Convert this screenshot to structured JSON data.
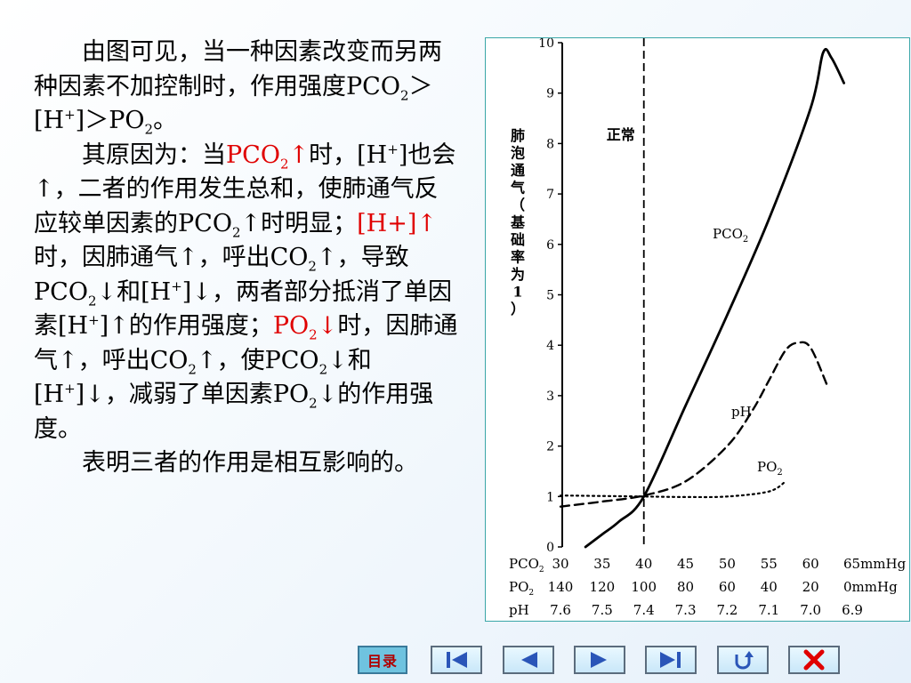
{
  "text": {
    "p1_a": "由图可见，当一种因素改变而另两种因素不加控制时，作用强度PCO",
    "p1_b": "＞[H",
    "p1_c": "]＞PO",
    "p1_d": "。",
    "sub2": "2",
    "sup_plus": "+",
    "p2_a": "其原因为：当",
    "p2_red1": "PCO",
    "p2_red1_arrow": "↑",
    "p2_b": "时，[H",
    "p2_c": "]也会↑，二者的作用发生总和，使肺通气反应较单因素的PCO",
    "p2_d": "↑时明显；",
    "p2_red2": "[H+]↑",
    "p2_e": "时，因肺通气↑，呼出CO",
    "p2_f": "↑，导致PCO",
    "p2_g": "↓和[H",
    "p2_h": "]↓，两者部分抵消了单因素[H",
    "p2_i": "]↑的作用强度；",
    "p2_red3": "PO",
    "p2_red3_arrow": "↓",
    "p2_j": "时，因肺通气↑，呼出CO",
    "p2_k": "↑，使PCO",
    "p2_l": "↓和[H",
    "p2_m": "]↓，减弱了单因素PO",
    "p2_n": "↓的作用强度。",
    "p3": "表明三者的作用是相互影响的。"
  },
  "chart_data": {
    "type": "line",
    "ylabel": "肺泡通气（基础率为1）",
    "ylim": [
      0,
      10
    ],
    "yticks": [
      "0",
      "1",
      "2",
      "3",
      "4",
      "5",
      "6",
      "7",
      "8",
      "9",
      "10"
    ],
    "normal_label": "正常",
    "axis_rows": [
      {
        "label": "PCO",
        "sub": "2",
        "ticks": [
          "30",
          "35",
          "40",
          "45",
          "50",
          "55",
          "60",
          "65mmHg"
        ]
      },
      {
        "label": "PO",
        "sub": "2",
        "ticks": [
          "140",
          "120",
          "100",
          "80",
          "60",
          "40",
          "20",
          "0mmHg"
        ]
      },
      {
        "label": "pH",
        "sub": "",
        "ticks": [
          "7.6",
          "7.5",
          "7.4",
          "7.3",
          "7.2",
          "7.1",
          "7.0",
          "6.9"
        ]
      }
    ],
    "series": [
      {
        "name": "PCO2",
        "label_main": "PCO",
        "label_sub": "2",
        "style": "solid",
        "x": [
          33,
          35,
          37,
          40,
          45,
          50,
          55,
          60,
          61.5,
          62.5,
          64
        ],
        "y": [
          0,
          0.25,
          0.5,
          1.0,
          2.8,
          4.6,
          6.5,
          8.7,
          9.8,
          9.7,
          9.2
        ]
      },
      {
        "name": "pH",
        "label_main": "pH",
        "label_sub": "",
        "style": "dashed",
        "x": [
          30,
          35,
          40,
          45,
          50,
          53,
          55,
          57,
          58.5,
          60,
          62
        ],
        "y": [
          0.8,
          0.9,
          1.02,
          1.3,
          2.0,
          2.7,
          3.3,
          3.9,
          4.05,
          3.95,
          3.2
        ]
      },
      {
        "name": "PO2",
        "label_main": "PO",
        "label_sub": "2",
        "style": "dotted",
        "x": [
          30,
          35,
          40,
          45,
          50,
          55,
          57
        ],
        "y": [
          1.02,
          1.01,
          1.0,
          0.99,
          1.0,
          1.1,
          1.3
        ]
      }
    ]
  },
  "nav": {
    "menu_label": "目录",
    "buttons": [
      "first-page",
      "previous-page",
      "next-page",
      "last-page",
      "return",
      "exit"
    ]
  }
}
